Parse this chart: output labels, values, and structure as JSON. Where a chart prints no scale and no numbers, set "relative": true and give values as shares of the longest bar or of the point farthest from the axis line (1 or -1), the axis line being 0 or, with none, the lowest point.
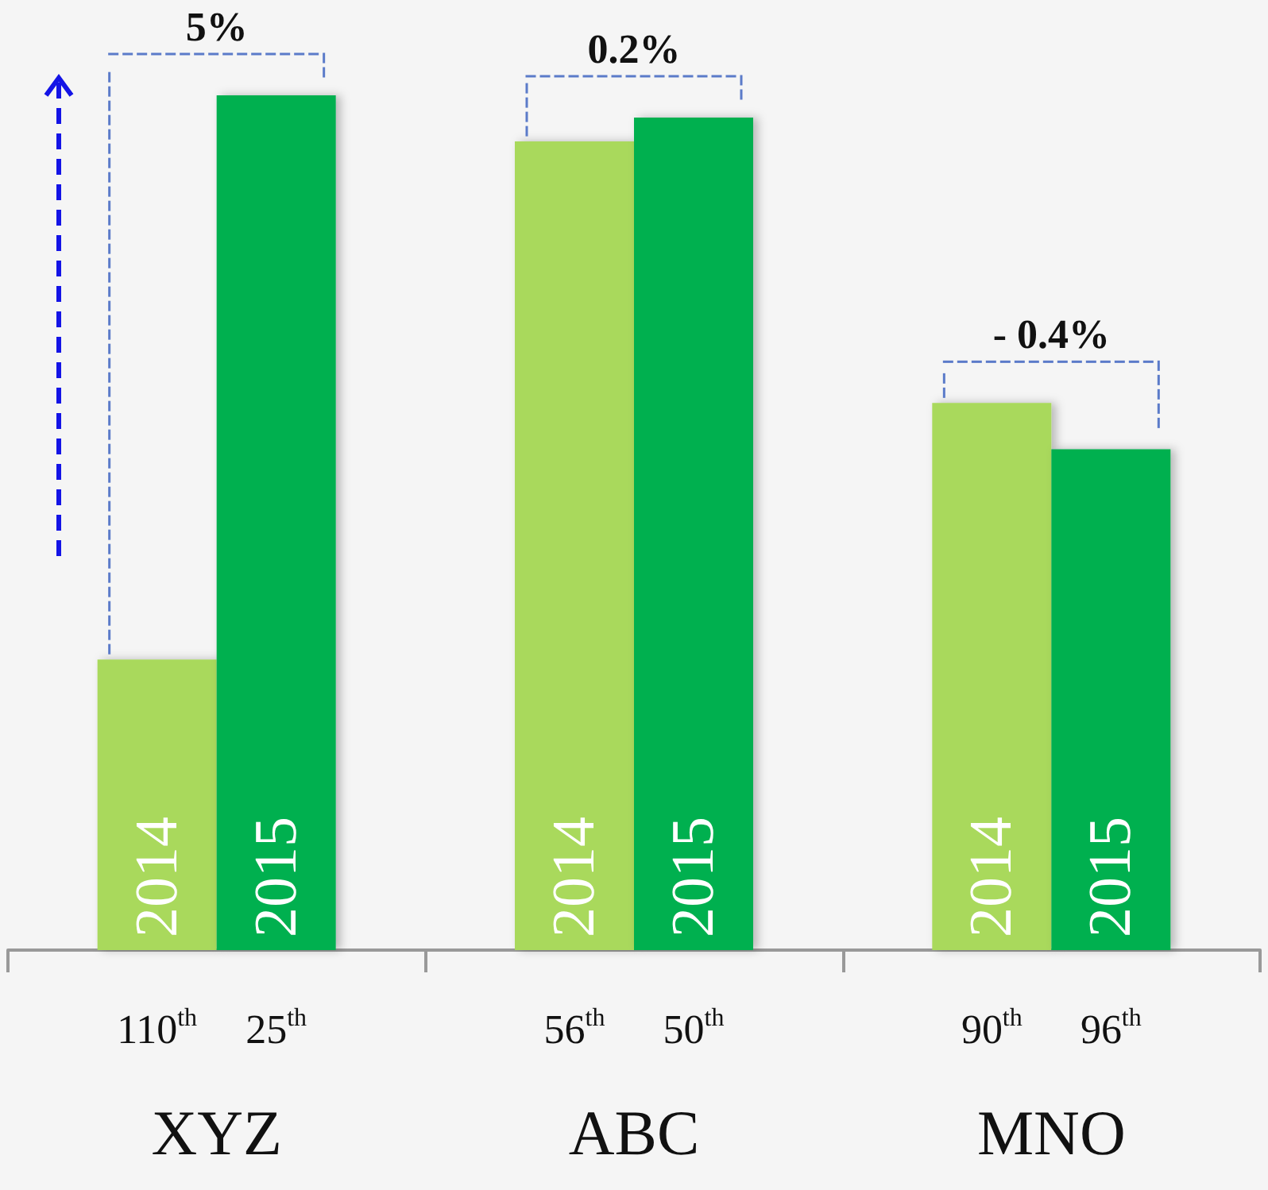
{
  "chart_data": {
    "type": "bar",
    "relative": true,
    "categories": [
      "XYZ",
      "ABC",
      "MNO"
    ],
    "series": [
      {
        "name": "2014",
        "color": "#a9d95b",
        "values": [
          0.34,
          0.946,
          0.64
        ]
      },
      {
        "name": "2015",
        "color": "#00b050",
        "values": [
          1,
          0.974,
          0.586
        ]
      }
    ],
    "annotations": [
      "5%",
      "0.2%",
      "- 0.4%",
      "110$^{th}$",
      "25$^{th}$",
      "56$^{th}$",
      "50$^{th}$",
      "90$^{th}$",
      "96$^{th}$"
    ],
    "legend": false,
    "grid": false
  }
}
